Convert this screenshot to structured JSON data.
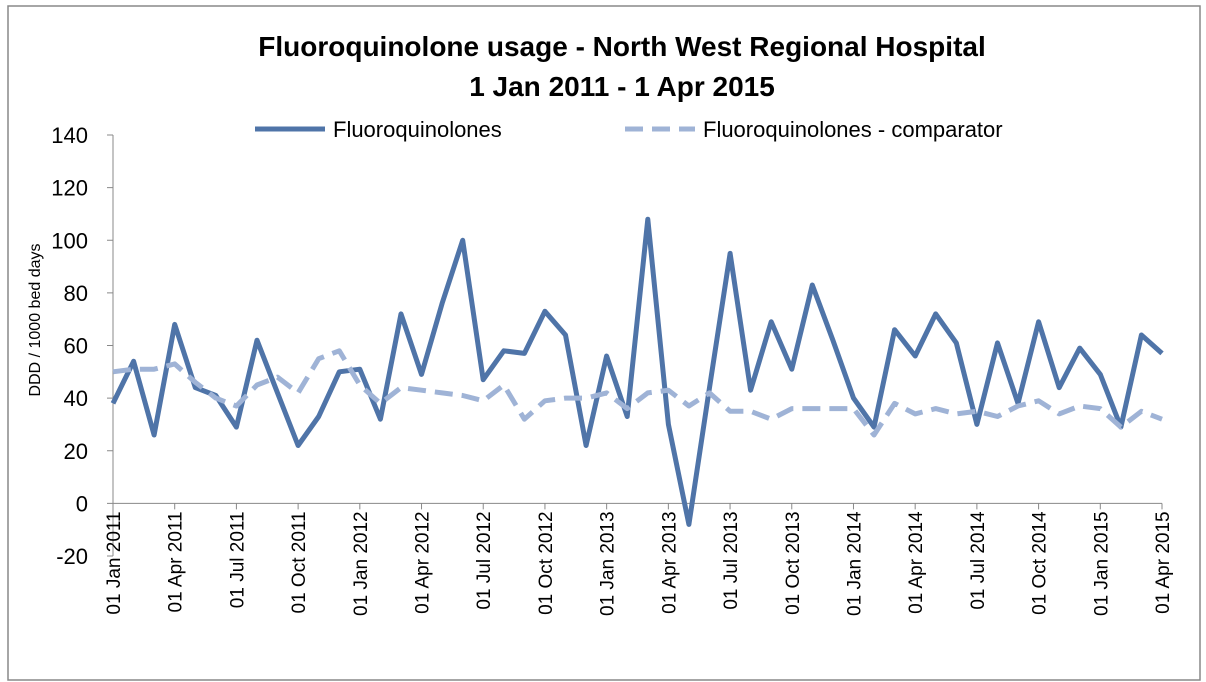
{
  "chart_data": {
    "type": "line",
    "title": "Fluoroquinolone usage - North West Regional Hospital",
    "subtitle": "1 Jan 2011 - 1 Apr 2015",
    "y_label": "DDD / 1000 bed days",
    "categories": [
      "01 Jan 2011",
      null,
      null,
      "01 Apr 2011",
      null,
      null,
      "01 Jul 2011",
      null,
      null,
      "01 Oct 2011",
      null,
      null,
      "01 Jan 2012",
      null,
      null,
      "01 Apr 2012",
      null,
      null,
      "01 Jul 2012",
      null,
      null,
      "01 Oct 2012",
      null,
      null,
      "01 Jan 2013",
      null,
      null,
      "01 Apr 2013",
      null,
      null,
      "01 Jul 2013",
      null,
      null,
      "01 Oct 2013",
      null,
      null,
      "01 Jan 2014",
      null,
      null,
      "01 Apr 2014",
      null,
      null,
      "01 Jul 2014",
      null,
      null,
      "01 Oct 2014",
      null,
      null,
      "01 Jan 2015",
      null,
      null,
      "01 Apr 2015"
    ],
    "series": [
      {
        "name": "Fluoroquinolones",
        "color": "#4f74a8",
        "dashed": false,
        "values": [
          38,
          54,
          26,
          68,
          44,
          41,
          29,
          62,
          42,
          22,
          33,
          50,
          51,
          32,
          72,
          49,
          76,
          100,
          47,
          58,
          57,
          73,
          64,
          22,
          56,
          33,
          108,
          30,
          -8,
          44,
          95,
          43,
          69,
          51,
          83,
          62,
          40,
          29,
          66,
          56,
          72,
          61,
          30,
          61,
          38,
          69,
          44,
          59,
          49,
          29,
          64,
          57
        ]
      },
      {
        "name": "Fluoroquinolones - comparator",
        "color": "#9fb3d6",
        "dashed": true,
        "values": [
          50,
          51,
          51,
          53,
          46,
          40,
          37,
          45,
          48,
          42,
          55,
          58,
          45,
          38,
          44,
          43,
          42,
          41,
          39,
          45,
          32,
          39,
          40,
          40,
          42,
          36,
          42,
          43,
          37,
          42,
          35,
          35,
          32,
          36,
          36,
          36,
          36,
          26,
          38,
          34,
          36,
          34,
          35,
          33,
          37,
          39,
          34,
          37,
          36,
          29,
          35,
          32
        ]
      }
    ],
    "ylim": [
      -20,
      140
    ],
    "yticks": [
      -20,
      0,
      20,
      40,
      60,
      80,
      100,
      120,
      140
    ],
    "grid": false,
    "legend": "top"
  }
}
